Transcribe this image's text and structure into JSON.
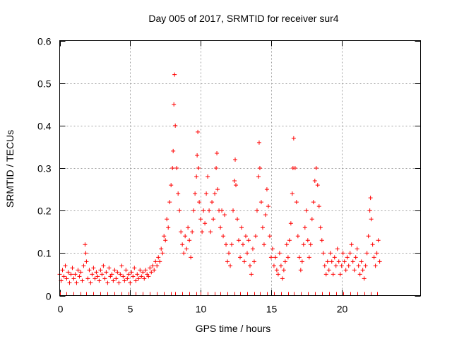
{
  "chart_data": {
    "type": "scatter",
    "title": "Day 005 of 2017, SRMTID for receiver sur4",
    "xlabel": "GPS time / hours",
    "ylabel": "SRMTID / TECUs",
    "xlim": [
      0,
      25.6
    ],
    "ylim": [
      0,
      0.6
    ],
    "xticks": [
      0,
      5,
      10,
      15,
      20
    ],
    "yticks": [
      0,
      0.1,
      0.2,
      0.3,
      0.4,
      0.5,
      0.6
    ],
    "xtick_labels": [
      "0",
      "5",
      "10",
      "15",
      "20"
    ],
    "ytick_labels": [
      "0",
      "0.1",
      "0.2",
      "0.3",
      "0.4",
      "0.5",
      "0.6"
    ],
    "grid": true,
    "marker": "+",
    "series": [
      {
        "name": "SRMTID",
        "color": "#ff0000",
        "points": [
          [
            0.0,
            0.05
          ],
          [
            0.1,
            0.035
          ],
          [
            0.2,
            0.06
          ],
          [
            0.3,
            0.045
          ],
          [
            0.4,
            0.07
          ],
          [
            0.5,
            0.04
          ],
          [
            0.6,
            0.055
          ],
          [
            0.7,
            0.03
          ],
          [
            0.8,
            0.05
          ],
          [
            0.9,
            0.065
          ],
          [
            1.0,
            0.04
          ],
          [
            1.1,
            0.05
          ],
          [
            1.2,
            0.03
          ],
          [
            1.3,
            0.06
          ],
          [
            1.4,
            0.045
          ],
          [
            1.5,
            0.055
          ],
          [
            1.6,
            0.035
          ],
          [
            1.7,
            0.07
          ],
          [
            1.8,
            0.12
          ],
          [
            1.85,
            0.1
          ],
          [
            1.9,
            0.08
          ],
          [
            2.0,
            0.04
          ],
          [
            2.1,
            0.06
          ],
          [
            2.2,
            0.03
          ],
          [
            2.3,
            0.05
          ],
          [
            2.4,
            0.065
          ],
          [
            2.5,
            0.04
          ],
          [
            2.6,
            0.055
          ],
          [
            2.7,
            0.045
          ],
          [
            2.8,
            0.035
          ],
          [
            2.9,
            0.06
          ],
          [
            3.0,
            0.05
          ],
          [
            3.1,
            0.07
          ],
          [
            3.2,
            0.04
          ],
          [
            3.3,
            0.055
          ],
          [
            3.4,
            0.03
          ],
          [
            3.5,
            0.065
          ],
          [
            3.6,
            0.045
          ],
          [
            3.7,
            0.05
          ],
          [
            3.8,
            0.035
          ],
          [
            3.9,
            0.06
          ],
          [
            4.0,
            0.04
          ],
          [
            4.1,
            0.055
          ],
          [
            4.2,
            0.03
          ],
          [
            4.3,
            0.05
          ],
          [
            4.4,
            0.07
          ],
          [
            4.5,
            0.045
          ],
          [
            4.6,
            0.035
          ],
          [
            4.7,
            0.06
          ],
          [
            4.8,
            0.04
          ],
          [
            4.9,
            0.05
          ],
          [
            5.0,
            0.03
          ],
          [
            5.1,
            0.055
          ],
          [
            5.2,
            0.045
          ],
          [
            5.3,
            0.065
          ],
          [
            5.4,
            0.035
          ],
          [
            5.5,
            0.05
          ],
          [
            5.6,
            0.04
          ],
          [
            5.7,
            0.06
          ],
          [
            5.8,
            0.045
          ],
          [
            5.9,
            0.055
          ],
          [
            6.0,
            0.04
          ],
          [
            6.1,
            0.06
          ],
          [
            6.2,
            0.05
          ],
          [
            6.3,
            0.045
          ],
          [
            6.4,
            0.065
          ],
          [
            6.5,
            0.055
          ],
          [
            6.6,
            0.07
          ],
          [
            6.7,
            0.06
          ],
          [
            6.8,
            0.08
          ],
          [
            6.9,
            0.07
          ],
          [
            7.0,
            0.09
          ],
          [
            7.1,
            0.08
          ],
          [
            7.2,
            0.11
          ],
          [
            7.3,
            0.1
          ],
          [
            7.4,
            0.14
          ],
          [
            7.5,
            0.13
          ],
          [
            7.6,
            0.18
          ],
          [
            7.7,
            0.16
          ],
          [
            7.8,
            0.22
          ],
          [
            7.9,
            0.26
          ],
          [
            8.0,
            0.3
          ],
          [
            8.05,
            0.34
          ],
          [
            8.1,
            0.45
          ],
          [
            8.15,
            0.52
          ],
          [
            8.2,
            0.4
          ],
          [
            8.3,
            0.3
          ],
          [
            8.4,
            0.24
          ],
          [
            8.5,
            0.2
          ],
          [
            8.6,
            0.15
          ],
          [
            8.7,
            0.12
          ],
          [
            8.8,
            0.1
          ],
          [
            8.9,
            0.14
          ],
          [
            9.0,
            0.11
          ],
          [
            9.1,
            0.16
          ],
          [
            9.2,
            0.13
          ],
          [
            9.3,
            0.09
          ],
          [
            9.4,
            0.15
          ],
          [
            9.5,
            0.2
          ],
          [
            9.6,
            0.24
          ],
          [
            9.7,
            0.28
          ],
          [
            9.75,
            0.33
          ],
          [
            9.8,
            0.385
          ],
          [
            9.85,
            0.3
          ],
          [
            9.9,
            0.22
          ],
          [
            10.0,
            0.18
          ],
          [
            10.1,
            0.15
          ],
          [
            10.2,
            0.2
          ],
          [
            10.3,
            0.17
          ],
          [
            10.4,
            0.24
          ],
          [
            10.5,
            0.28
          ],
          [
            10.6,
            0.2
          ],
          [
            10.7,
            0.15
          ],
          [
            10.8,
            0.22
          ],
          [
            10.9,
            0.18
          ],
          [
            11.0,
            0.24
          ],
          [
            11.1,
            0.3
          ],
          [
            11.15,
            0.335
          ],
          [
            11.2,
            0.25
          ],
          [
            11.3,
            0.2
          ],
          [
            11.4,
            0.16
          ],
          [
            11.5,
            0.2
          ],
          [
            11.6,
            0.14
          ],
          [
            11.7,
            0.19
          ],
          [
            11.8,
            0.12
          ],
          [
            11.9,
            0.08
          ],
          [
            12.0,
            0.1
          ],
          [
            12.1,
            0.07
          ],
          [
            12.2,
            0.12
          ],
          [
            12.3,
            0.2
          ],
          [
            12.4,
            0.27
          ],
          [
            12.45,
            0.32
          ],
          [
            12.5,
            0.26
          ],
          [
            12.6,
            0.18
          ],
          [
            12.7,
            0.13
          ],
          [
            12.8,
            0.09
          ],
          [
            12.9,
            0.16
          ],
          [
            13.0,
            0.12
          ],
          [
            13.1,
            0.08
          ],
          [
            13.2,
            0.14
          ],
          [
            13.3,
            0.1
          ],
          [
            13.4,
            0.13
          ],
          [
            13.5,
            0.07
          ],
          [
            13.6,
            0.05
          ],
          [
            13.7,
            0.11
          ],
          [
            13.8,
            0.08
          ],
          [
            13.9,
            0.14
          ],
          [
            14.0,
            0.2
          ],
          [
            14.1,
            0.28
          ],
          [
            14.15,
            0.36
          ],
          [
            14.2,
            0.3
          ],
          [
            14.3,
            0.22
          ],
          [
            14.4,
            0.16
          ],
          [
            14.5,
            0.12
          ],
          [
            14.6,
            0.19
          ],
          [
            14.7,
            0.25
          ],
          [
            14.8,
            0.21
          ],
          [
            14.9,
            0.14
          ],
          [
            15.0,
            0.09
          ],
          [
            15.1,
            0.11
          ],
          [
            15.2,
            0.07
          ],
          [
            15.3,
            0.09
          ],
          [
            15.4,
            0.06
          ],
          [
            15.5,
            0.05
          ],
          [
            15.6,
            0.1
          ],
          [
            15.7,
            0.07
          ],
          [
            15.8,
            0.04
          ],
          [
            15.9,
            0.06
          ],
          [
            16.0,
            0.08
          ],
          [
            16.1,
            0.12
          ],
          [
            16.2,
            0.09
          ],
          [
            16.3,
            0.13
          ],
          [
            16.4,
            0.17
          ],
          [
            16.5,
            0.24
          ],
          [
            16.55,
            0.3
          ],
          [
            16.6,
            0.37
          ],
          [
            16.7,
            0.3
          ],
          [
            16.8,
            0.22
          ],
          [
            16.9,
            0.14
          ],
          [
            17.0,
            0.09
          ],
          [
            17.1,
            0.06
          ],
          [
            17.2,
            0.08
          ],
          [
            17.3,
            0.12
          ],
          [
            17.4,
            0.16
          ],
          [
            17.5,
            0.2
          ],
          [
            17.6,
            0.13
          ],
          [
            17.7,
            0.09
          ],
          [
            17.8,
            0.12
          ],
          [
            17.9,
            0.18
          ],
          [
            18.0,
            0.22
          ],
          [
            18.1,
            0.27
          ],
          [
            18.2,
            0.3
          ],
          [
            18.3,
            0.26
          ],
          [
            18.4,
            0.21
          ],
          [
            18.5,
            0.16
          ],
          [
            18.6,
            0.13
          ],
          [
            18.7,
            0.1
          ],
          [
            18.8,
            0.07
          ],
          [
            18.9,
            0.05
          ],
          [
            19.0,
            0.08
          ],
          [
            19.1,
            0.06
          ],
          [
            19.2,
            0.1
          ],
          [
            19.3,
            0.08
          ],
          [
            19.4,
            0.05
          ],
          [
            19.5,
            0.09
          ],
          [
            19.6,
            0.07
          ],
          [
            19.7,
            0.11
          ],
          [
            19.8,
            0.08
          ],
          [
            19.9,
            0.05
          ],
          [
            20.0,
            0.07
          ],
          [
            20.1,
            0.1
          ],
          [
            20.2,
            0.08
          ],
          [
            20.3,
            0.06
          ],
          [
            20.4,
            0.09
          ],
          [
            20.5,
            0.07
          ],
          [
            20.6,
            0.1
          ],
          [
            20.7,
            0.12
          ],
          [
            20.8,
            0.08
          ],
          [
            20.9,
            0.06
          ],
          [
            21.0,
            0.09
          ],
          [
            21.1,
            0.11
          ],
          [
            21.2,
            0.07
          ],
          [
            21.3,
            0.05
          ],
          [
            21.4,
            0.08
          ],
          [
            21.5,
            0.06
          ],
          [
            21.6,
            0.04
          ],
          [
            21.7,
            0.07
          ],
          [
            21.8,
            0.1
          ],
          [
            21.9,
            0.14
          ],
          [
            22.0,
            0.2
          ],
          [
            22.05,
            0.23
          ],
          [
            22.1,
            0.18
          ],
          [
            22.2,
            0.12
          ],
          [
            22.3,
            0.09
          ],
          [
            22.4,
            0.07
          ],
          [
            22.5,
            0.1
          ],
          [
            22.6,
            0.13
          ],
          [
            22.7,
            0.08
          ]
        ]
      }
    ]
  }
}
